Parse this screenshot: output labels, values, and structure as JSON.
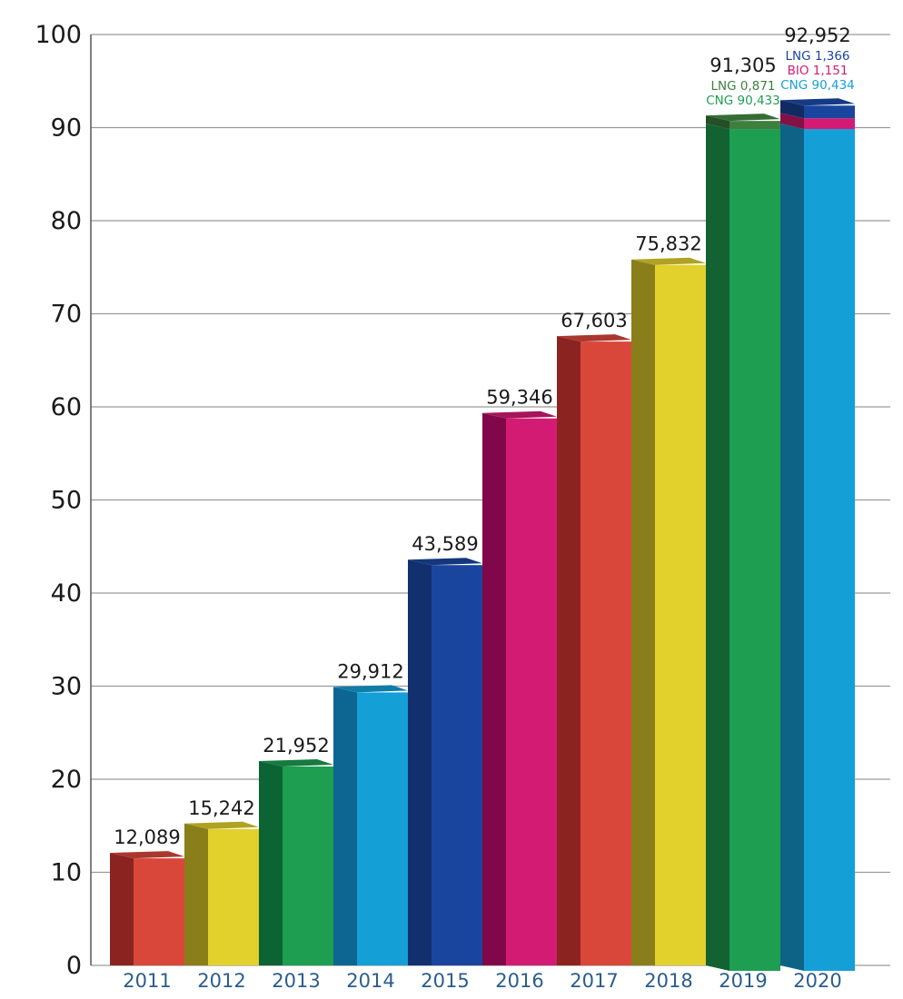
{
  "chart_data": {
    "type": "bar",
    "categories": [
      "2011",
      "2012",
      "2013",
      "2014",
      "2015",
      "2016",
      "2017",
      "2018",
      "2019",
      "2020"
    ],
    "values": [
      12.089,
      15.242,
      21.952,
      29.912,
      43.589,
      59.346,
      67.603,
      75.832,
      91.305,
      92.952
    ],
    "value_labels": [
      "12,089",
      "15,242",
      "21,952",
      "29,912",
      "43,589",
      "59,346",
      "67,603",
      "75,832",
      "91,305",
      "92,952"
    ],
    "colors": [
      "#d9473b",
      "#e2d02c",
      "#1e9e51",
      "#159fd7",
      "#1a459e",
      "#d41b74",
      "#d9473b",
      "#e2d02c",
      "#1e9e51",
      "#159fd7"
    ],
    "side_colors": [
      "#8b2420",
      "#8a7e1a",
      "#0c6333",
      "#0d6691",
      "#12306e",
      "#80074a",
      "#8b2420",
      "#8a7e1a",
      "#0c6333",
      "#0d6691"
    ],
    "breakdowns": [
      {
        "category": "2019",
        "items": [
          {
            "label": "LNG 0,871",
            "value": 0.871,
            "color": "#3e7f3e"
          },
          {
            "label": "CNG 90,433",
            "value": 90.433,
            "color": "#1e9e51"
          }
        ]
      },
      {
        "category": "2020",
        "items": [
          {
            "label": "LNG 1,366",
            "value": 1.366,
            "color": "#1a459e"
          },
          {
            "label": "BIO 1,151",
            "value": 1.151,
            "color": "#d41b74"
          },
          {
            "label": "CNG 90,434",
            "value": 90.434,
            "color": "#159fd7"
          }
        ]
      }
    ],
    "yticks": [
      0,
      10,
      20,
      30,
      40,
      50,
      60,
      70,
      80,
      90,
      100
    ],
    "ylim": [
      0,
      100
    ],
    "grid": true,
    "title": "",
    "xlabel": "",
    "ylabel": ""
  }
}
